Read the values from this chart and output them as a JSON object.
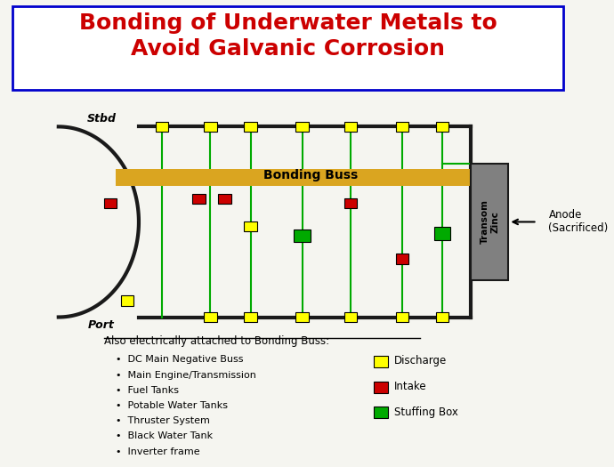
{
  "title_line1": "Bonding of Underwater Metals to",
  "title_line2": "Avoid Galvanic Corrosion",
  "title_color": "#CC0000",
  "title_fontsize": 18,
  "bg_color": "#F5F5F0",
  "border_color": "#0000CC",
  "boat_color": "#1a1a1a",
  "buss_color": "#DAA520",
  "buss_label": "Bonding Buss",
  "transom_color": "#808080",
  "transom_label": "Transom\nZinc",
  "anode_label": "Anode\n(Sacrificed)",
  "stbd_label": "Stbd",
  "port_label": "Port",
  "wire_color": "#00AA00",
  "yellow_color": "#FFFF00",
  "red_color": "#CC0000",
  "green_color": "#00AA00",
  "legend_items": [
    {
      "color": "#FFFF00",
      "label": "Discharge"
    },
    {
      "color": "#CC0000",
      "label": "Intake"
    },
    {
      "color": "#00AA00",
      "label": "Stuffing Box"
    }
  ],
  "bullet_points": [
    "DC Main Negative Buss",
    "Main Engine/Transmission",
    "Fuel Tanks",
    "Potable Water Tanks",
    "Thruster System",
    "Black Water Tank",
    "Inverter frame"
  ],
  "also_text": "Also electrically attached to Bonding Buss:"
}
